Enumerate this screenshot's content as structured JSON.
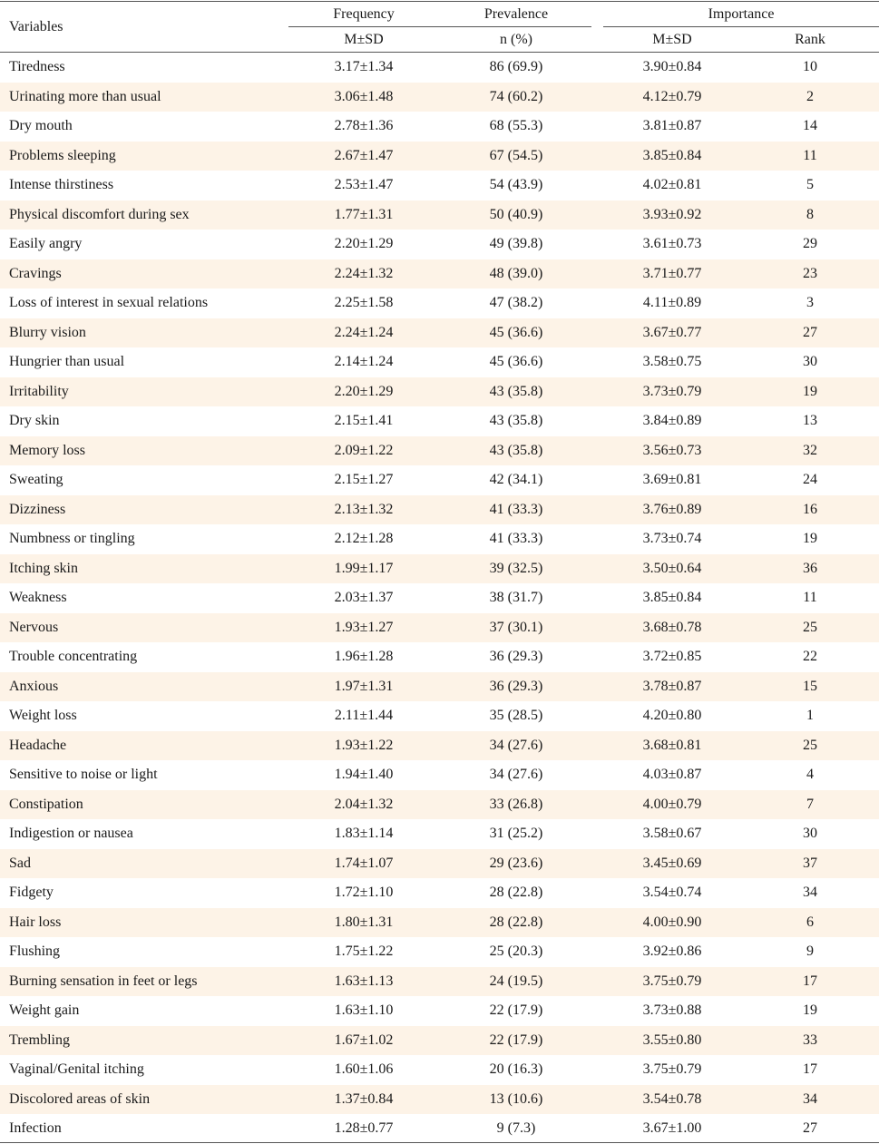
{
  "header": {
    "variables": "Variables",
    "frequency": "Frequency",
    "prevalence": "Prevalence",
    "importance": "Importance",
    "freq_sub": "M±SD",
    "prev_sub": "n (%)",
    "imp_sub": "M±SD",
    "rank_sub": "Rank"
  },
  "rows": [
    {
      "variable": "Tiredness",
      "frequency": "3.17±1.34",
      "prevalence": "86 (69.9)",
      "importance": "3.90±0.84",
      "rank": "10"
    },
    {
      "variable": "Urinating more than usual",
      "frequency": "3.06±1.48",
      "prevalence": "74 (60.2)",
      "importance": "4.12±0.79",
      "rank": "2"
    },
    {
      "variable": "Dry mouth",
      "frequency": "2.78±1.36",
      "prevalence": "68 (55.3)",
      "importance": "3.81±0.87",
      "rank": "14"
    },
    {
      "variable": "Problems sleeping",
      "frequency": "2.67±1.47",
      "prevalence": "67 (54.5)",
      "importance": "3.85±0.84",
      "rank": "11"
    },
    {
      "variable": "Intense thirstiness",
      "frequency": "2.53±1.47",
      "prevalence": "54 (43.9)",
      "importance": "4.02±0.81",
      "rank": "5"
    },
    {
      "variable": "Physical discomfort during sex",
      "frequency": "1.77±1.31",
      "prevalence": "50 (40.9)",
      "importance": "3.93±0.92",
      "rank": "8"
    },
    {
      "variable": "Easily angry",
      "frequency": "2.20±1.29",
      "prevalence": "49 (39.8)",
      "importance": "3.61±0.73",
      "rank": "29"
    },
    {
      "variable": "Cravings",
      "frequency": "2.24±1.32",
      "prevalence": "48 (39.0)",
      "importance": "3.71±0.77",
      "rank": "23"
    },
    {
      "variable": "Loss of interest in sexual relations",
      "frequency": "2.25±1.58",
      "prevalence": "47 (38.2)",
      "importance": "4.11±0.89",
      "rank": "3"
    },
    {
      "variable": "Blurry vision",
      "frequency": "2.24±1.24",
      "prevalence": "45 (36.6)",
      "importance": "3.67±0.77",
      "rank": "27"
    },
    {
      "variable": "Hungrier than usual",
      "frequency": "2.14±1.24",
      "prevalence": "45 (36.6)",
      "importance": "3.58±0.75",
      "rank": "30"
    },
    {
      "variable": "Irritability",
      "frequency": "2.20±1.29",
      "prevalence": "43 (35.8)",
      "importance": "3.73±0.79",
      "rank": "19"
    },
    {
      "variable": "Dry skin",
      "frequency": "2.15±1.41",
      "prevalence": "43 (35.8)",
      "importance": "3.84±0.89",
      "rank": "13"
    },
    {
      "variable": "Memory loss",
      "frequency": "2.09±1.22",
      "prevalence": "43 (35.8)",
      "importance": "3.56±0.73",
      "rank": "32"
    },
    {
      "variable": "Sweating",
      "frequency": "2.15±1.27",
      "prevalence": "42 (34.1)",
      "importance": "3.69±0.81",
      "rank": "24"
    },
    {
      "variable": "Dizziness",
      "frequency": "2.13±1.32",
      "prevalence": "41 (33.3)",
      "importance": "3.76±0.89",
      "rank": "16"
    },
    {
      "variable": "Numbness or tingling",
      "frequency": "2.12±1.28",
      "prevalence": "41 (33.3)",
      "importance": "3.73±0.74",
      "rank": "19"
    },
    {
      "variable": "Itching skin",
      "frequency": "1.99±1.17",
      "prevalence": "39 (32.5)",
      "importance": "3.50±0.64",
      "rank": "36"
    },
    {
      "variable": "Weakness",
      "frequency": "2.03±1.37",
      "prevalence": "38 (31.7)",
      "importance": "3.85±0.84",
      "rank": "11"
    },
    {
      "variable": "Nervous",
      "frequency": "1.93±1.27",
      "prevalence": "37 (30.1)",
      "importance": "3.68±0.78",
      "rank": "25"
    },
    {
      "variable": "Trouble concentrating",
      "frequency": "1.96±1.28",
      "prevalence": "36 (29.3)",
      "importance": "3.72±0.85",
      "rank": "22"
    },
    {
      "variable": "Anxious",
      "frequency": "1.97±1.31",
      "prevalence": "36 (29.3)",
      "importance": "3.78±0.87",
      "rank": "15"
    },
    {
      "variable": "Weight loss",
      "frequency": "2.11±1.44",
      "prevalence": "35 (28.5)",
      "importance": "4.20±0.80",
      "rank": "1"
    },
    {
      "variable": "Headache",
      "frequency": "1.93±1.22",
      "prevalence": "34 (27.6)",
      "importance": "3.68±0.81",
      "rank": "25"
    },
    {
      "variable": "Sensitive to noise or light",
      "frequency": "1.94±1.40",
      "prevalence": "34 (27.6)",
      "importance": "4.03±0.87",
      "rank": "4"
    },
    {
      "variable": "Constipation",
      "frequency": "2.04±1.32",
      "prevalence": "33 (26.8)",
      "importance": "4.00±0.79",
      "rank": "7"
    },
    {
      "variable": "Indigestion or nausea",
      "frequency": "1.83±1.14",
      "prevalence": "31 (25.2)",
      "importance": "3.58±0.67",
      "rank": "30"
    },
    {
      "variable": "Sad",
      "frequency": "1.74±1.07",
      "prevalence": "29 (23.6)",
      "importance": "3.45±0.69",
      "rank": "37"
    },
    {
      "variable": "Fidgety",
      "frequency": "1.72±1.10",
      "prevalence": "28 (22.8)",
      "importance": "3.54±0.74",
      "rank": "34"
    },
    {
      "variable": "Hair loss",
      "frequency": "1.80±1.31",
      "prevalence": "28 (22.8)",
      "importance": "4.00±0.90",
      "rank": "6"
    },
    {
      "variable": "Flushing",
      "frequency": "1.75±1.22",
      "prevalence": "25 (20.3)",
      "importance": "3.92±0.86",
      "rank": "9"
    },
    {
      "variable": "Burning sensation in feet or legs",
      "frequency": "1.63±1.13",
      "prevalence": "24 (19.5)",
      "importance": "3.75±0.79",
      "rank": "17"
    },
    {
      "variable": "Weight gain",
      "frequency": "1.63±1.10",
      "prevalence": "22 (17.9)",
      "importance": "3.73±0.88",
      "rank": "19"
    },
    {
      "variable": "Trembling",
      "frequency": "1.67±1.02",
      "prevalence": "22 (17.9)",
      "importance": "3.55±0.80",
      "rank": "33"
    },
    {
      "variable": "Vaginal/Genital itching",
      "frequency": "1.60±1.06",
      "prevalence": "20 (16.3)",
      "importance": "3.75±0.79",
      "rank": "17"
    },
    {
      "variable": "Discolored areas of skin",
      "frequency": "1.37±0.84",
      "prevalence": "13 (10.6)",
      "importance": "3.54±0.78",
      "rank": "34"
    },
    {
      "variable": "Infection",
      "frequency": "1.28±0.77",
      "prevalence": "9 (7.3)",
      "importance": "3.67±1.00",
      "rank": "27"
    }
  ],
  "colors": {
    "shaded_row": "#fdf3e7",
    "rule": "#555555"
  }
}
